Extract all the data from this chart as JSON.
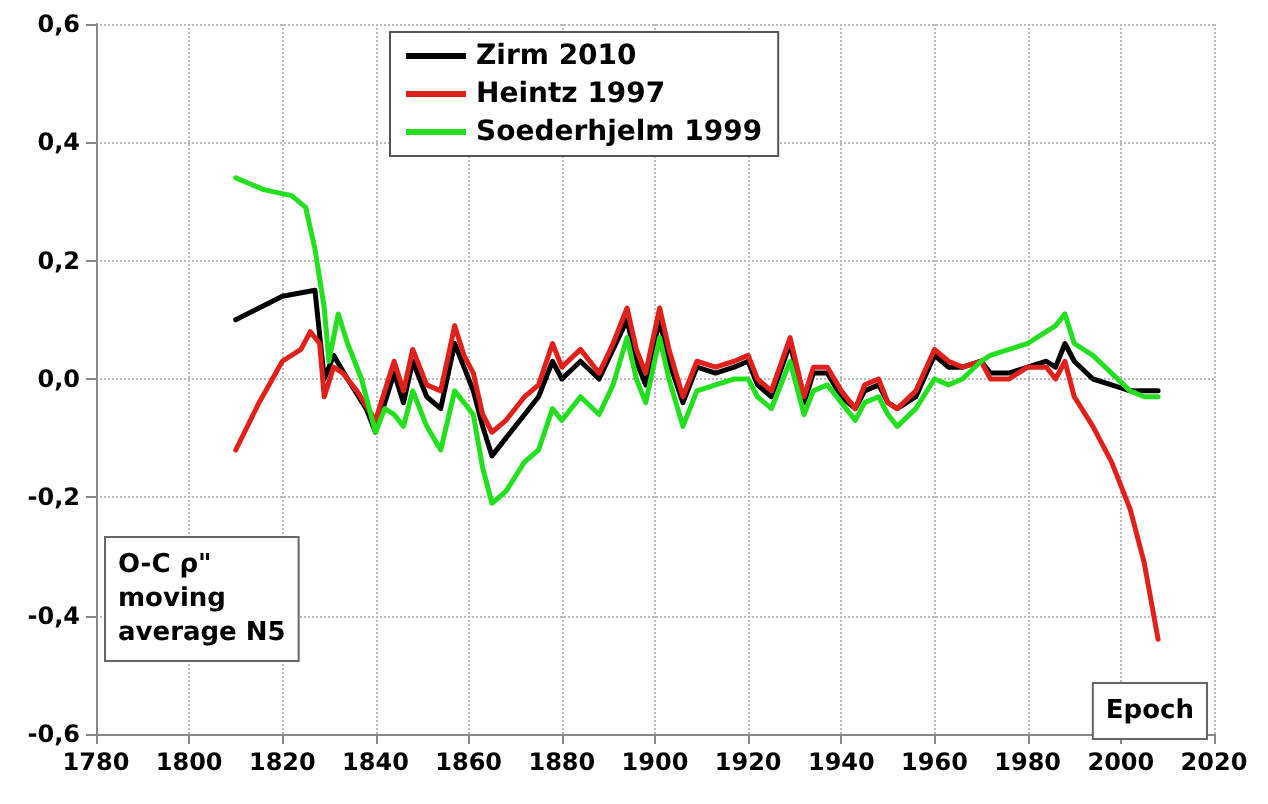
{
  "chart_data": {
    "type": "line",
    "xlabel": "Epoch",
    "ylabel": "O-C ρ\" moving average N5",
    "xlim": [
      1780,
      2020
    ],
    "xticks": [
      1780,
      1800,
      1820,
      1840,
      1860,
      1880,
      1900,
      1920,
      1940,
      1960,
      1980,
      2000,
      2020
    ],
    "ylim": [
      -0.6,
      0.6
    ],
    "yticks": [
      {
        "value": -0.6,
        "label": "-0,6"
      },
      {
        "value": -0.4,
        "label": "-0,4"
      },
      {
        "value": -0.2,
        "label": "-0,2"
      },
      {
        "value": 0,
        "label": "0,0"
      },
      {
        "value": 0.2,
        "label": "0,2"
      },
      {
        "value": 0.4,
        "label": "0,4"
      },
      {
        "value": 0.6,
        "label": "0,6"
      }
    ],
    "grid": true,
    "legend": "top",
    "marker": "none",
    "line_style": "solid",
    "series": [
      {
        "name": "Zirm 2010",
        "color": "#000000",
        "x": [
          1810,
          1815,
          1820,
          1827,
          1829,
          1831,
          1834,
          1838,
          1840,
          1842,
          1844,
          1846,
          1848,
          1851,
          1854,
          1857,
          1859,
          1861,
          1863,
          1865,
          1868,
          1872,
          1875,
          1878,
          1880,
          1884,
          1888,
          1891,
          1894,
          1896,
          1898,
          1901,
          1903,
          1906,
          1909,
          1913,
          1917,
          1920,
          1922,
          1925,
          1929,
          1932,
          1934,
          1937,
          1940,
          1943,
          1945,
          1948,
          1950,
          1952,
          1956,
          1960,
          1963,
          1966,
          1970,
          1972,
          1976,
          1980,
          1984,
          1986,
          1988,
          1990,
          1994,
          1998,
          2002,
          2005,
          2008
        ],
        "values": [
          0.1,
          0.12,
          0.14,
          0.15,
          0.0,
          0.04,
          0.0,
          -0.05,
          -0.09,
          -0.04,
          0.01,
          -0.04,
          0.03,
          -0.03,
          -0.05,
          0.06,
          0.02,
          -0.02,
          -0.08,
          -0.13,
          -0.1,
          -0.06,
          -0.03,
          0.03,
          0.0,
          0.03,
          0.0,
          0.05,
          0.1,
          0.03,
          -0.01,
          0.1,
          0.03,
          -0.04,
          0.02,
          0.01,
          0.02,
          0.03,
          -0.01,
          -0.03,
          0.06,
          -0.04,
          0.01,
          0.01,
          -0.03,
          -0.05,
          -0.02,
          -0.01,
          -0.04,
          -0.05,
          -0.03,
          0.04,
          0.02,
          0.02,
          0.03,
          0.01,
          0.01,
          0.02,
          0.03,
          0.02,
          0.06,
          0.03,
          0.0,
          -0.01,
          -0.02,
          -0.02,
          -0.02
        ]
      },
      {
        "name": "Heintz 1997",
        "color": "#e0201b",
        "x": [
          1810,
          1815,
          1820,
          1824,
          1826,
          1828,
          1829,
          1831,
          1833,
          1836,
          1840,
          1842,
          1844,
          1846,
          1848,
          1851,
          1854,
          1857,
          1859,
          1861,
          1863,
          1865,
          1868,
          1872,
          1875,
          1878,
          1880,
          1884,
          1888,
          1891,
          1894,
          1896,
          1898,
          1901,
          1903,
          1906,
          1909,
          1913,
          1917,
          1920,
          1922,
          1925,
          1929,
          1932,
          1934,
          1937,
          1940,
          1943,
          1945,
          1948,
          1950,
          1952,
          1956,
          1960,
          1963,
          1966,
          1970,
          1972,
          1976,
          1980,
          1984,
          1986,
          1988,
          1990,
          1994,
          1998,
          2002,
          2005,
          2008
        ],
        "values": [
          -0.12,
          -0.04,
          0.03,
          0.05,
          0.08,
          0.06,
          -0.03,
          0.02,
          0.01,
          -0.02,
          -0.07,
          -0.02,
          0.03,
          -0.02,
          0.05,
          -0.01,
          -0.02,
          0.09,
          0.04,
          0.01,
          -0.06,
          -0.09,
          -0.07,
          -0.03,
          -0.01,
          0.06,
          0.02,
          0.05,
          0.01,
          0.06,
          0.12,
          0.05,
          0.01,
          0.12,
          0.05,
          -0.03,
          0.03,
          0.02,
          0.03,
          0.04,
          0.0,
          -0.02,
          0.07,
          -0.03,
          0.02,
          0.02,
          -0.02,
          -0.05,
          -0.01,
          0.0,
          -0.04,
          -0.05,
          -0.02,
          0.05,
          0.03,
          0.02,
          0.03,
          0.0,
          0.0,
          0.02,
          0.02,
          0.0,
          0.03,
          -0.03,
          -0.08,
          -0.14,
          -0.22,
          -0.31,
          -0.44
        ]
      },
      {
        "name": "Soederhjelm 1999",
        "color": "#22e01e",
        "x": [
          1810,
          1816,
          1822,
          1825,
          1827,
          1829,
          1830,
          1832,
          1834,
          1837,
          1840,
          1842,
          1844,
          1846,
          1848,
          1851,
          1854,
          1857,
          1859,
          1861,
          1863,
          1865,
          1868,
          1872,
          1875,
          1878,
          1880,
          1884,
          1888,
          1891,
          1894,
          1896,
          1898,
          1901,
          1903,
          1906,
          1909,
          1913,
          1917,
          1920,
          1922,
          1925,
          1929,
          1932,
          1934,
          1937,
          1940,
          1943,
          1945,
          1948,
          1950,
          1952,
          1956,
          1960,
          1963,
          1966,
          1970,
          1972,
          1976,
          1980,
          1984,
          1986,
          1988,
          1990,
          1994,
          1998,
          2002,
          2005,
          2008
        ],
        "values": [
          0.34,
          0.32,
          0.31,
          0.29,
          0.22,
          0.12,
          0.03,
          0.11,
          0.06,
          0.0,
          -0.09,
          -0.05,
          -0.06,
          -0.08,
          -0.02,
          -0.08,
          -0.12,
          -0.02,
          -0.04,
          -0.06,
          -0.15,
          -0.21,
          -0.19,
          -0.14,
          -0.12,
          -0.05,
          -0.07,
          -0.03,
          -0.06,
          -0.01,
          0.07,
          0.0,
          -0.04,
          0.07,
          0.0,
          -0.08,
          -0.02,
          -0.01,
          0.0,
          0.0,
          -0.03,
          -0.05,
          0.03,
          -0.06,
          -0.02,
          -0.01,
          -0.04,
          -0.07,
          -0.04,
          -0.03,
          -0.06,
          -0.08,
          -0.05,
          0.0,
          -0.01,
          0.0,
          0.03,
          0.04,
          0.05,
          0.06,
          0.08,
          0.09,
          0.11,
          0.06,
          0.04,
          0.01,
          -0.02,
          -0.03,
          -0.03
        ]
      }
    ]
  }
}
